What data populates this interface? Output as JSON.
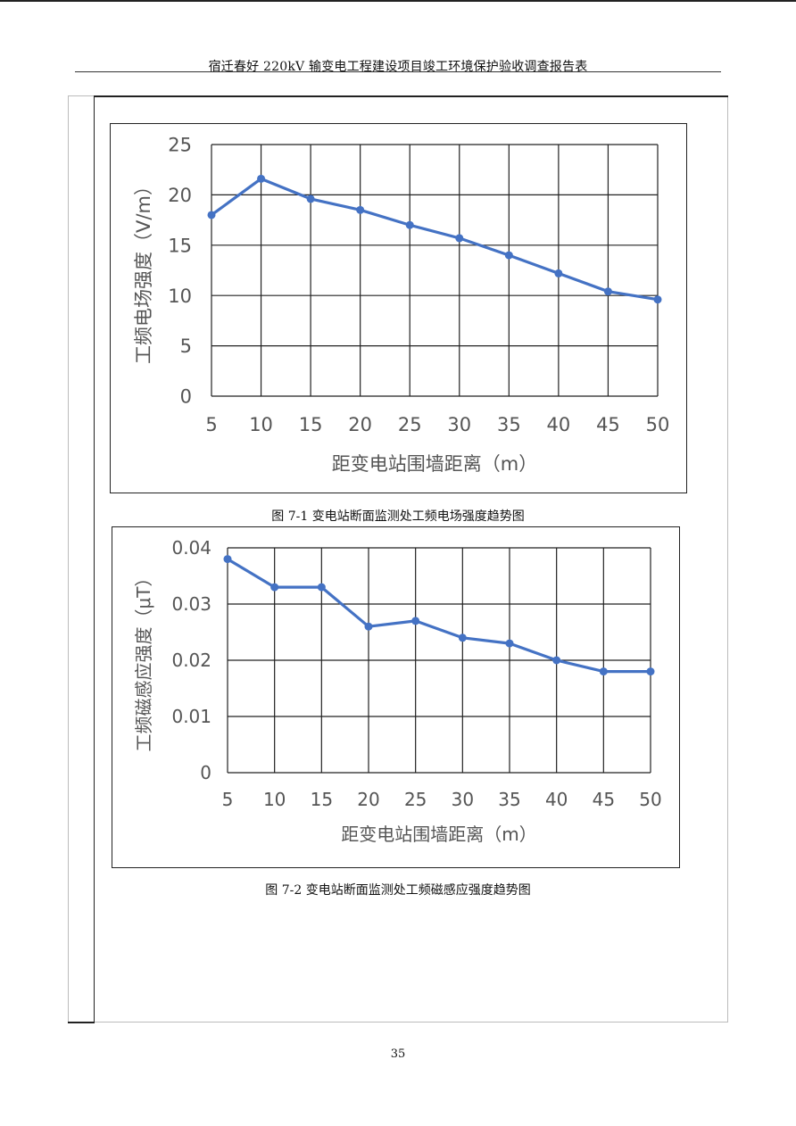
{
  "header": {
    "title": "宿迁春好 220kV 输变电工程建设项目竣工环境保护验收调查报告表"
  },
  "page_number": "35",
  "captions": {
    "fig1": "图 7-1 变电站断面监测处工频电场强度趋势图",
    "fig2": "图 7-2 变电站断面监测处工频磁感应强度趋势图"
  },
  "colors": {
    "series": "#4472C4"
  },
  "chart_data": [
    {
      "type": "line",
      "title": "",
      "xlabel": "距变电站围墙距离（m）",
      "ylabel": "工频电场强度（V/m）",
      "x": [
        5,
        10,
        15,
        20,
        25,
        30,
        35,
        40,
        45,
        50
      ],
      "x_tick_labels": [
        "5",
        "10",
        "15",
        "20",
        "25",
        "30",
        "35",
        "40",
        "45",
        "50"
      ],
      "y_tick_values": [
        0,
        5,
        10,
        15,
        20,
        25
      ],
      "y_tick_labels": [
        "0",
        "5",
        "10",
        "15",
        "20",
        "25"
      ],
      "ylim": [
        0,
        25
      ],
      "grid": true,
      "series": [
        {
          "values": [
            18.0,
            21.6,
            19.6,
            18.5,
            17.0,
            15.7,
            14.0,
            12.2,
            10.4,
            9.6
          ]
        }
      ]
    },
    {
      "type": "line",
      "title": "",
      "xlabel": "距变电站围墙距离（m）",
      "ylabel": "工频磁感应强度（μT）",
      "x": [
        5,
        10,
        15,
        20,
        25,
        30,
        35,
        40,
        45,
        50
      ],
      "x_tick_labels": [
        "5",
        "10",
        "15",
        "20",
        "25",
        "30",
        "35",
        "40",
        "45",
        "50"
      ],
      "y_tick_values": [
        0,
        0.01,
        0.02,
        0.03,
        0.04
      ],
      "y_tick_labels": [
        "0",
        "0.01",
        "0.02",
        "0.03",
        "0.04"
      ],
      "ylim": [
        0,
        0.04
      ],
      "grid": true,
      "series": [
        {
          "values": [
            0.038,
            0.033,
            0.033,
            0.026,
            0.027,
            0.024,
            0.023,
            0.02,
            0.018,
            0.018
          ]
        }
      ]
    }
  ]
}
